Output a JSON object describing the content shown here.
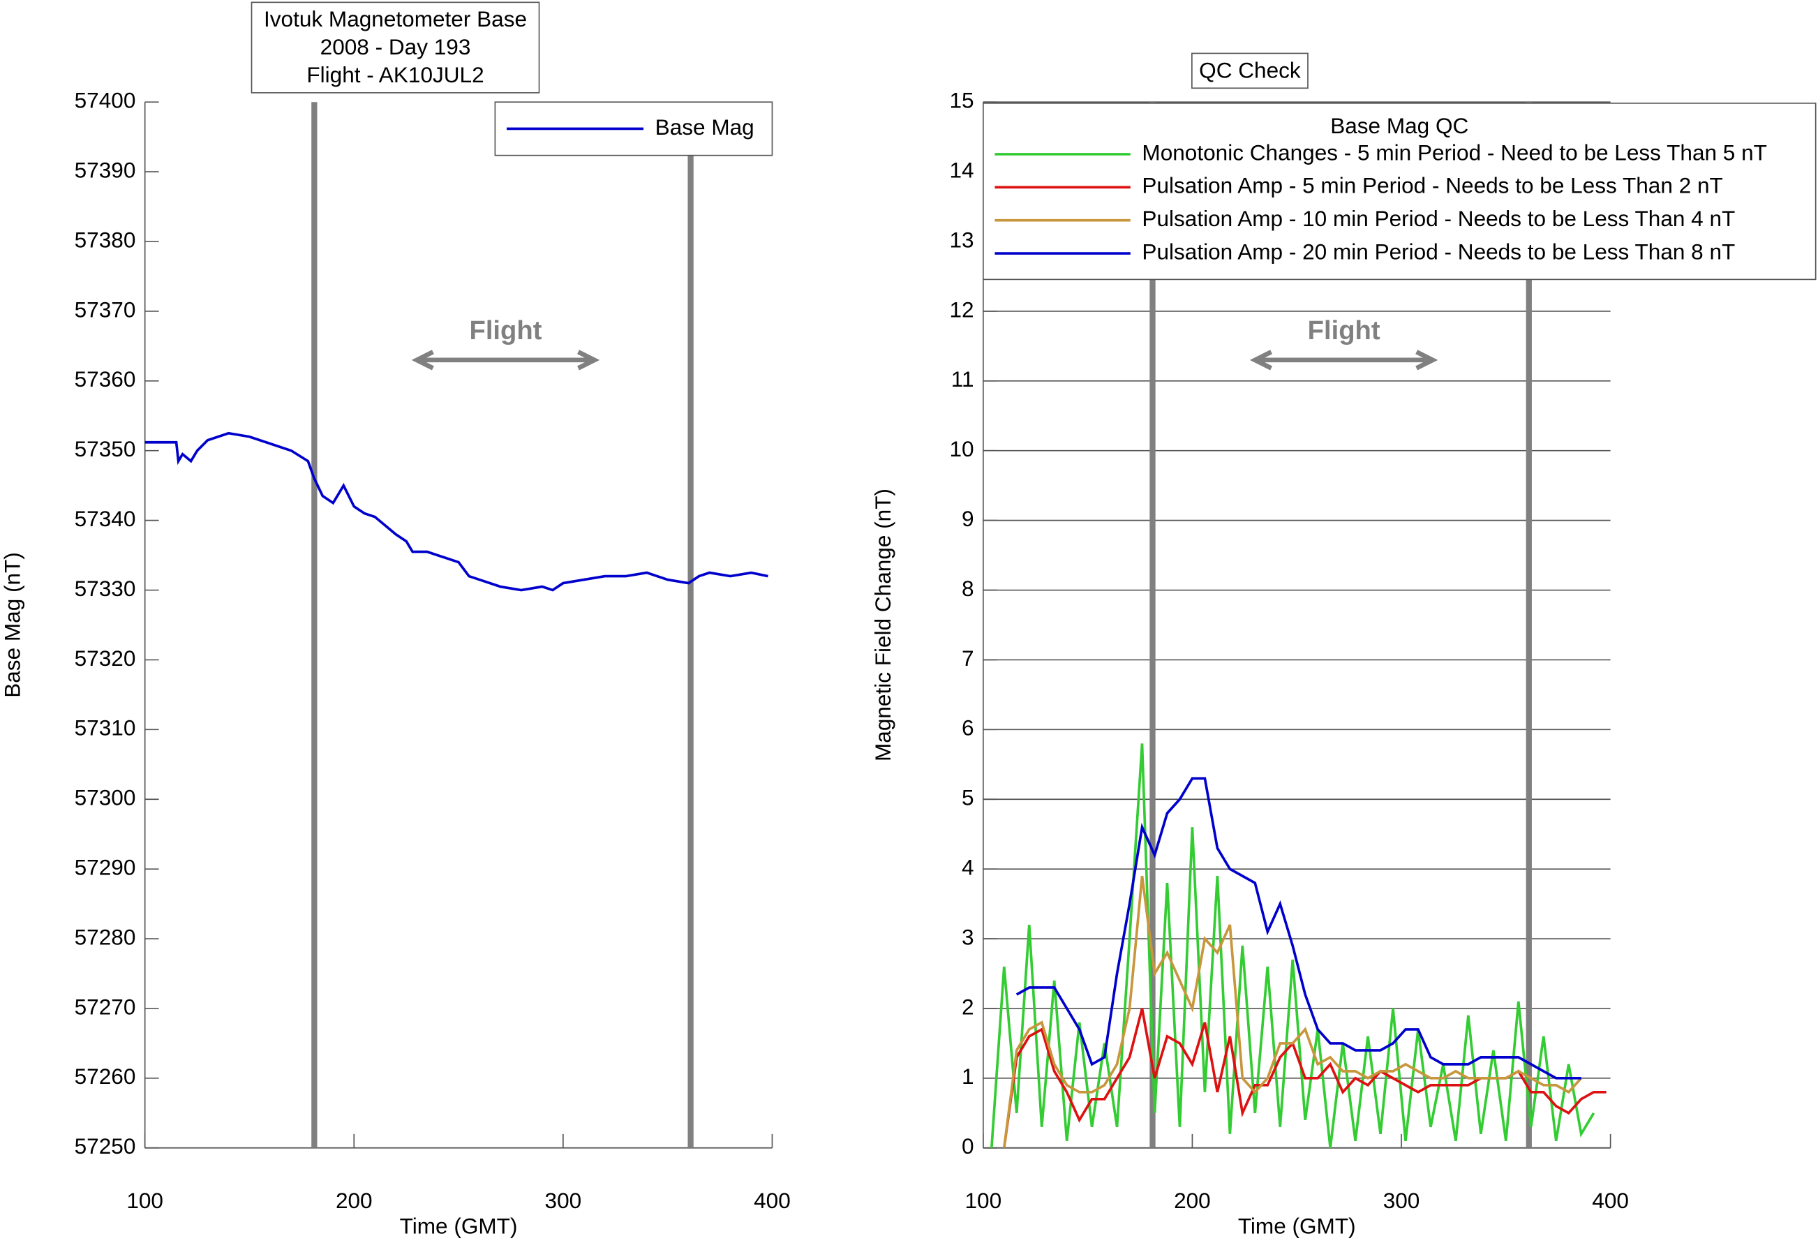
{
  "chart_data": [
    {
      "type": "line",
      "title": [
        "Ivotuk Magnetometer Base",
        "2008 - Day 193",
        "Flight - AK10JUL2"
      ],
      "x_label": "Time (GMT)",
      "y_label": "Base Mag (nT)",
      "x": [
        100,
        115,
        116,
        118,
        122,
        125,
        130,
        140,
        150,
        160,
        170,
        178,
        181,
        185,
        190,
        195,
        200,
        205,
        210,
        220,
        225,
        228,
        235,
        240,
        250,
        255,
        260,
        270,
        280,
        290,
        295,
        300,
        310,
        320,
        330,
        340,
        350,
        360,
        365,
        370,
        380,
        390,
        398
      ],
      "series": [
        {
          "name": "Base Mag",
          "color": "#0000cc",
          "values": [
            57351.2,
            57351.2,
            57348.5,
            57349.5,
            57348.5,
            57350,
            57351.5,
            57352.5,
            57352,
            57351,
            57350,
            57348.5,
            57346,
            57343.5,
            57342.5,
            57345,
            57342,
            57341,
            57340.5,
            57338,
            57337,
            57335.5,
            57335.5,
            57335,
            57334,
            57332,
            57331.5,
            57330.5,
            57330,
            57330.5,
            57330,
            57331,
            57331.5,
            57332,
            57332,
            57332.5,
            57331.5,
            57331,
            57332,
            57332.5,
            57332,
            57332.5,
            57332
          ]
        }
      ],
      "xlim": [
        100,
        400
      ],
      "xticks": [
        100,
        200,
        300,
        400
      ],
      "ylim": [
        57250,
        57400
      ],
      "yticks": [
        57250,
        57260,
        57270,
        57280,
        57290,
        57300,
        57310,
        57320,
        57330,
        57340,
        57350,
        57360,
        57370,
        57380,
        57390,
        57400
      ],
      "grid": false,
      "vlines": [
        181,
        361
      ],
      "annotation": {
        "text": "Flight",
        "x": [
          230,
          315
        ],
        "y": 57363
      }
    },
    {
      "type": "line",
      "title": [
        "QC Check"
      ],
      "legend_title": "Base Mag QC",
      "x_label": "Time (GMT)",
      "y_label": "Magnetic Field Change (nT)",
      "x": [
        104,
        110,
        116,
        122,
        128,
        134,
        140,
        146,
        152,
        158,
        164,
        170,
        176,
        182,
        188,
        194,
        200,
        206,
        212,
        218,
        224,
        230,
        236,
        242,
        248,
        254,
        260,
        266,
        272,
        278,
        284,
        290,
        296,
        302,
        308,
        314,
        320,
        326,
        332,
        338,
        344,
        350,
        356,
        362,
        368,
        374,
        380,
        386,
        392,
        398
      ],
      "series": [
        {
          "name": "Monotonic Changes - 5 min Period - Need to be Less Than 5 nT",
          "color": "#33cc33",
          "values": [
            0,
            2.6,
            0.5,
            3.2,
            0.3,
            2.4,
            0.1,
            1.8,
            0.3,
            1.5,
            0.3,
            3.0,
            5.8,
            0.5,
            3.8,
            0.3,
            4.6,
            0.8,
            3.9,
            0.2,
            2.9,
            0.5,
            2.6,
            0.3,
            2.7,
            0.4,
            1.7,
            0.0,
            1.5,
            0.1,
            1.6,
            0.2,
            2.0,
            0.1,
            1.7,
            0.3,
            1.2,
            0.1,
            1.9,
            0.2,
            1.4,
            0.1,
            2.1,
            0.3,
            1.6,
            0.1,
            1.2,
            0.2,
            0.5,
            null
          ]
        },
        {
          "name": "Pulsation Amp - 5 min Period - Needs to be Less Than 2 nT",
          "color": "#dd1111",
          "values": [
            null,
            0,
            1.3,
            1.6,
            1.7,
            1.1,
            0.8,
            0.4,
            0.7,
            0.7,
            1.0,
            1.3,
            2.0,
            1.0,
            1.6,
            1.5,
            1.2,
            1.8,
            0.8,
            1.6,
            0.5,
            0.9,
            0.9,
            1.3,
            1.5,
            1.0,
            1.0,
            1.2,
            0.8,
            1.0,
            0.9,
            1.1,
            1.0,
            0.9,
            0.8,
            0.9,
            0.9,
            0.9,
            0.9,
            1.0,
            1.0,
            1.0,
            1.1,
            0.8,
            0.8,
            0.6,
            0.5,
            0.7,
            0.8,
            0.8
          ]
        },
        {
          "name": "Pulsation Amp - 10 min Period - Needs to be Less Than 4 nT",
          "color": "#c8963c",
          "values": [
            null,
            0,
            1.4,
            1.7,
            1.8,
            1.2,
            0.9,
            0.8,
            0.8,
            0.9,
            1.2,
            2.0,
            3.9,
            2.5,
            2.8,
            2.4,
            2.0,
            3.0,
            2.8,
            3.2,
            1.0,
            0.8,
            1.0,
            1.5,
            1.5,
            1.7,
            1.2,
            1.3,
            1.1,
            1.1,
            1.0,
            1.1,
            1.1,
            1.2,
            1.1,
            1.0,
            1.0,
            1.1,
            1.0,
            1.0,
            1.0,
            1.0,
            1.1,
            1.0,
            0.9,
            0.9,
            0.8,
            1.0,
            null,
            null
          ]
        },
        {
          "name": "Pulsation Amp - 20 min Period - Needs to be Less Than 8 nT",
          "color": "#0000cc",
          "values": [
            null,
            null,
            2.2,
            2.3,
            2.3,
            2.3,
            2.0,
            1.7,
            1.2,
            1.3,
            2.5,
            3.5,
            4.6,
            4.2,
            4.8,
            5.0,
            5.3,
            5.3,
            4.3,
            4.0,
            3.9,
            3.8,
            3.1,
            3.5,
            2.9,
            2.2,
            1.7,
            1.5,
            1.5,
            1.4,
            1.4,
            1.4,
            1.5,
            1.7,
            1.7,
            1.3,
            1.2,
            1.2,
            1.2,
            1.3,
            1.3,
            1.3,
            1.3,
            1.2,
            1.1,
            1.0,
            1.0,
            1.0,
            null,
            null
          ]
        }
      ],
      "xlim": [
        100,
        400
      ],
      "xticks": [
        100,
        200,
        300,
        400
      ],
      "ylim": [
        0,
        15
      ],
      "yticks": [
        0,
        1,
        2,
        3,
        4,
        5,
        6,
        7,
        8,
        9,
        10,
        11,
        12,
        13,
        14,
        15
      ],
      "grid": true,
      "vlines": [
        181,
        361
      ],
      "annotation": {
        "text": "Flight",
        "x": [
          230,
          315
        ],
        "y": 11.3
      }
    }
  ]
}
